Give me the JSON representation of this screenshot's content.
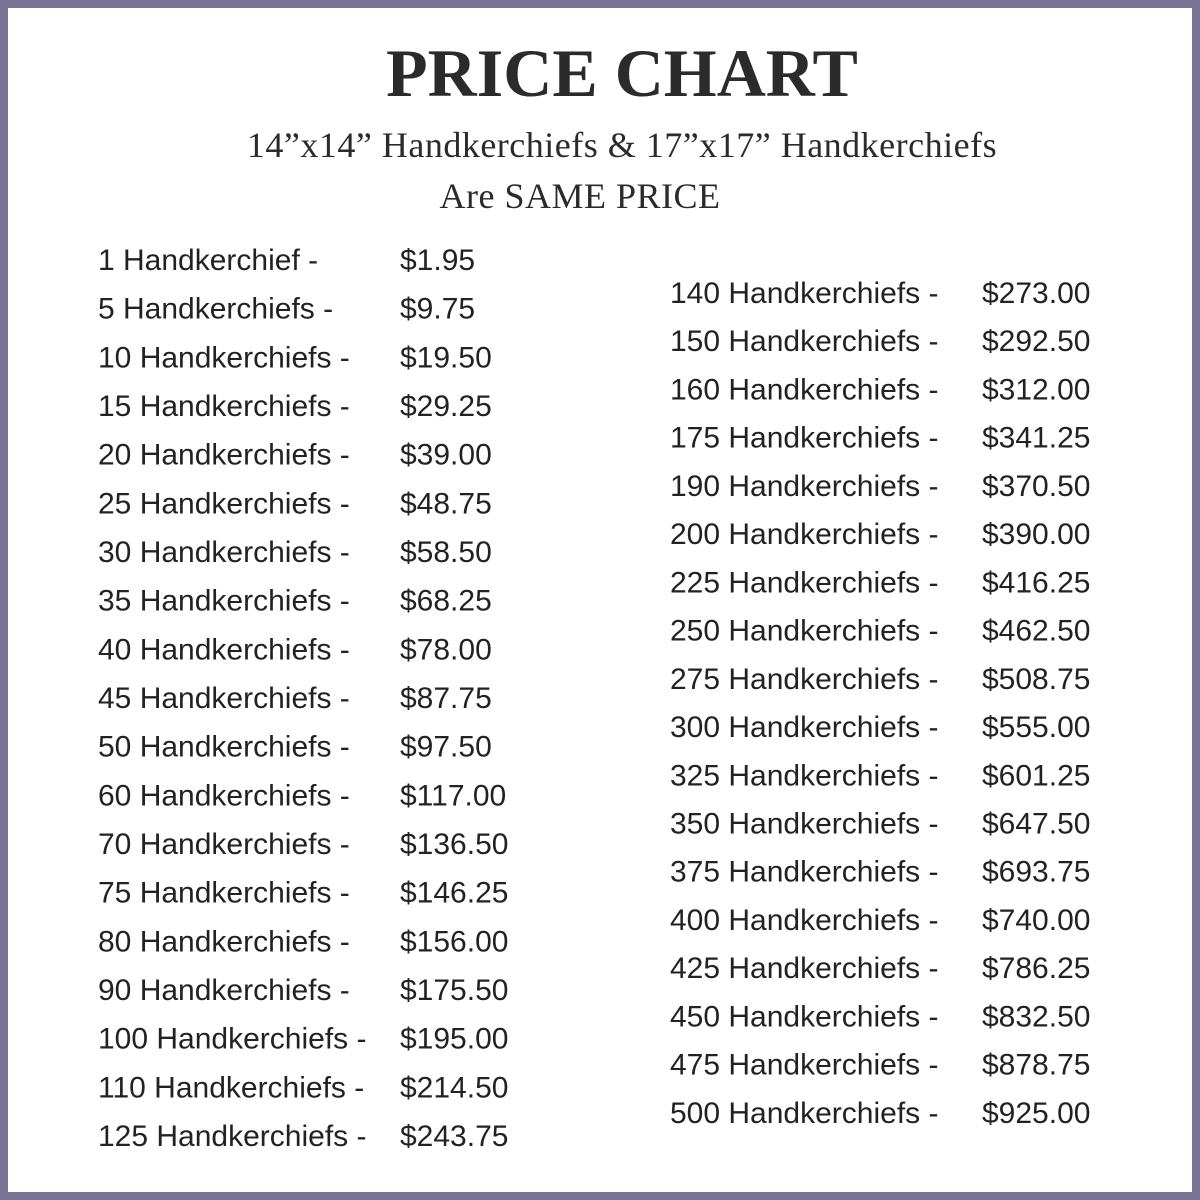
{
  "header": {
    "title": "PRICE CHART",
    "subtitle_line1": "14”x14” Handkerchiefs & 17”x17” Handkerchiefs",
    "subtitle_line2": "Are SAME PRICE"
  },
  "left_column": [
    {
      "label": "1 Handkerchief -",
      "price": "$1.95"
    },
    {
      "label": "5 Handkerchiefs -",
      "price": "$9.75"
    },
    {
      "label": "10 Handkerchiefs -",
      "price": "$19.50"
    },
    {
      "label": "15 Handkerchiefs -",
      "price": "$29.25"
    },
    {
      "label": "20 Handkerchiefs -",
      "price": "$39.00"
    },
    {
      "label": "25 Handkerchiefs -",
      "price": "$48.75"
    },
    {
      "label": "30 Handkerchiefs -",
      "price": "$58.50"
    },
    {
      "label": "35 Handkerchiefs -",
      "price": "$68.25"
    },
    {
      "label": "40 Handkerchiefs -",
      "price": "$78.00"
    },
    {
      "label": "45 Handkerchiefs -",
      "price": "$87.75"
    },
    {
      "label": "50 Handkerchiefs -",
      "price": "$97.50"
    },
    {
      "label": "60 Handkerchiefs -",
      "price": "$117.00"
    },
    {
      "label": "70 Handkerchiefs -",
      "price": "$136.50"
    },
    {
      "label": "75 Handkerchiefs -",
      "price": "$146.25"
    },
    {
      "label": "80 Handkerchiefs -",
      "price": "$156.00"
    },
    {
      "label": "90 Handkerchiefs -",
      "price": "$175.50"
    },
    {
      "label": "100 Handkerchiefs -",
      "price": "$195.00"
    },
    {
      "label": "110 Handkerchiefs -",
      "price": "$214.50"
    },
    {
      "label": "125 Handkerchiefs -",
      "price": "$243.75"
    }
  ],
  "right_column": [
    {
      "label": "140 Handkerchiefs -",
      "price": "$273.00"
    },
    {
      "label": "150 Handkerchiefs -",
      "price": "$292.50"
    },
    {
      "label": "160 Handkerchiefs -",
      "price": "$312.00"
    },
    {
      "label": "175 Handkerchiefs -",
      "price": "$341.25"
    },
    {
      "label": "190 Handkerchiefs -",
      "price": "$370.50"
    },
    {
      "label": "200 Handkerchiefs -",
      "price": "$390.00"
    },
    {
      "label": "225 Handkerchiefs -",
      "price": "$416.25"
    },
    {
      "label": "250 Handkerchiefs -",
      "price": "$462.50"
    },
    {
      "label": "275 Handkerchiefs -",
      "price": "$508.75"
    },
    {
      "label": "300 Handkerchiefs -",
      "price": "$555.00"
    },
    {
      "label": "325 Handkerchiefs -",
      "price": "$601.25"
    },
    {
      "label": "350 Handkerchiefs -",
      "price": "$647.50"
    },
    {
      "label": "375 Handkerchiefs -",
      "price": "$693.75"
    },
    {
      "label": "400 Handkerchiefs -",
      "price": "$740.00"
    },
    {
      "label": "425 Handkerchiefs -",
      "price": "$786.25"
    },
    {
      "label": "450 Handkerchiefs -",
      "price": "$832.50"
    },
    {
      "label": "475 Handkerchiefs -",
      "price": "$878.75"
    },
    {
      "label": "500 Handkerchiefs -",
      "price": "$925.00"
    }
  ]
}
